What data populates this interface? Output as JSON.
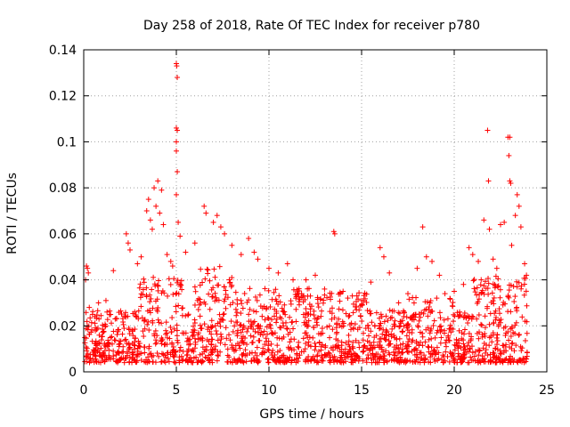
{
  "chart_data": {
    "type": "scatter",
    "title": "Day 258 of 2018, Rate Of TEC Index for receiver p780",
    "xlabel": "GPS time / hours",
    "ylabel": "ROTI / TECUs",
    "xlim": [
      0,
      25
    ],
    "ylim": [
      0,
      0.14
    ],
    "xticks": [
      0,
      5,
      10,
      15,
      20,
      25
    ],
    "yticks": [
      0,
      0.02,
      0.04,
      0.06,
      0.08,
      0.1,
      0.12,
      0.14
    ],
    "xtick_labels": [
      "0",
      "5",
      "10",
      "15",
      "20",
      "25"
    ],
    "ytick_labels": [
      "0",
      "0.02",
      "0.04",
      "0.06",
      "0.08",
      "0.1",
      "0.12",
      "0.14"
    ],
    "grid": true,
    "marker": "+",
    "color": "#ff0000",
    "series": [
      {
        "name": "ROTI",
        "note": "dense background cloud (0.004-0.03 TECU/s) plus notable peaks listed below",
        "points": [
          [
            0.1,
            0.04
          ],
          [
            0.15,
            0.046
          ],
          [
            0.2,
            0.045
          ],
          [
            0.25,
            0.043
          ],
          [
            0.3,
            0.028
          ],
          [
            0.8,
            0.03
          ],
          [
            1.2,
            0.031
          ],
          [
            1.6,
            0.044
          ],
          [
            2.3,
            0.06
          ],
          [
            2.4,
            0.056
          ],
          [
            2.5,
            0.053
          ],
          [
            2.9,
            0.047
          ],
          [
            3.1,
            0.05
          ],
          [
            3.4,
            0.07
          ],
          [
            3.5,
            0.075
          ],
          [
            3.6,
            0.066
          ],
          [
            3.7,
            0.062
          ],
          [
            3.8,
            0.08
          ],
          [
            3.9,
            0.072
          ],
          [
            4.0,
            0.083
          ],
          [
            4.1,
            0.069
          ],
          [
            4.2,
            0.079
          ],
          [
            4.3,
            0.064
          ],
          [
            4.5,
            0.051
          ],
          [
            4.7,
            0.048
          ],
          [
            4.8,
            0.046
          ],
          [
            5.0,
            0.134
          ],
          [
            5.02,
            0.133
          ],
          [
            5.05,
            0.128
          ],
          [
            5.0,
            0.106
          ],
          [
            5.05,
            0.105
          ],
          [
            5.0,
            0.1
          ],
          [
            5.0,
            0.096
          ],
          [
            5.05,
            0.087
          ],
          [
            5.0,
            0.077
          ],
          [
            5.1,
            0.065
          ],
          [
            5.2,
            0.059
          ],
          [
            5.5,
            0.052
          ],
          [
            6.0,
            0.056
          ],
          [
            6.5,
            0.072
          ],
          [
            6.6,
            0.069
          ],
          [
            7.0,
            0.065
          ],
          [
            7.2,
            0.068
          ],
          [
            7.4,
            0.063
          ],
          [
            7.6,
            0.06
          ],
          [
            8.0,
            0.055
          ],
          [
            8.5,
            0.051
          ],
          [
            8.9,
            0.058
          ],
          [
            9.2,
            0.052
          ],
          [
            9.4,
            0.049
          ],
          [
            10.0,
            0.045
          ],
          [
            10.5,
            0.043
          ],
          [
            11.0,
            0.047
          ],
          [
            11.3,
            0.04
          ],
          [
            12.0,
            0.04
          ],
          [
            12.5,
            0.042
          ],
          [
            13.0,
            0.036
          ],
          [
            13.5,
            0.061
          ],
          [
            13.55,
            0.06
          ],
          [
            14.0,
            0.035
          ],
          [
            14.5,
            0.033
          ],
          [
            15.0,
            0.031
          ],
          [
            15.5,
            0.039
          ],
          [
            16.0,
            0.054
          ],
          [
            16.2,
            0.05
          ],
          [
            16.5,
            0.043
          ],
          [
            17.0,
            0.03
          ],
          [
            17.5,
            0.034
          ],
          [
            18.0,
            0.045
          ],
          [
            18.3,
            0.063
          ],
          [
            18.5,
            0.05
          ],
          [
            18.8,
            0.048
          ],
          [
            19.2,
            0.042
          ],
          [
            19.5,
            0.034
          ],
          [
            20.0,
            0.035
          ],
          [
            20.5,
            0.038
          ],
          [
            20.8,
            0.054
          ],
          [
            21.0,
            0.051
          ],
          [
            21.3,
            0.048
          ],
          [
            21.6,
            0.066
          ],
          [
            21.8,
            0.105
          ],
          [
            21.85,
            0.083
          ],
          [
            21.9,
            0.062
          ],
          [
            22.1,
            0.049
          ],
          [
            22.3,
            0.045
          ],
          [
            22.5,
            0.064
          ],
          [
            22.7,
            0.065
          ],
          [
            22.9,
            0.102
          ],
          [
            23.0,
            0.102
          ],
          [
            22.95,
            0.094
          ],
          [
            23.0,
            0.083
          ],
          [
            23.05,
            0.082
          ],
          [
            23.1,
            0.055
          ],
          [
            23.3,
            0.068
          ],
          [
            23.4,
            0.077
          ],
          [
            23.5,
            0.072
          ],
          [
            23.6,
            0.063
          ],
          [
            23.8,
            0.047
          ],
          [
            23.9,
            0.042
          ]
        ]
      }
    ]
  }
}
